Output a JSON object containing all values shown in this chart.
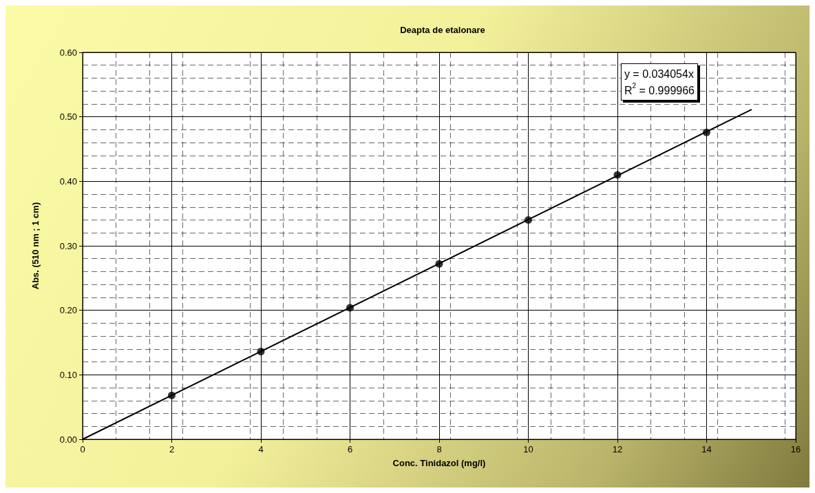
{
  "chart_data": {
    "type": "scatter",
    "title": "Deapta de etalonare",
    "xlabel": "Conc. Tinidazol (mg/l)",
    "ylabel": "Abs. (510 nm ; 1 cm)",
    "annotations": [
      "y = 0.034054x",
      "R$^{2}$ = 0.999966"
    ],
    "series": [
      {
        "color": "#000000",
        "x": [
          2,
          4,
          6,
          8,
          10,
          12,
          14
        ],
        "values": [
          0.068,
          0.136,
          0.204,
          0.272,
          0.34,
          0.41,
          0.476
        ],
        "marker": "circle"
      },
      {
        "type": "line",
        "color": "#000000",
        "x": [
          0,
          15
        ],
        "values": [
          0,
          0.511
        ],
        "marker": "none",
        "line_style": "solid"
      }
    ],
    "xlim": [
      0,
      16
    ],
    "xticks": [
      0,
      2,
      4,
      6,
      8,
      10,
      12,
      14,
      16
    ],
    "ylim": [
      0,
      0.6
    ],
    "yticks": [
      {
        "value": 0,
        "label": "0.00"
      },
      {
        "value": 0.1,
        "label": "0.10"
      },
      {
        "value": 0.2,
        "label": "0.20"
      },
      {
        "value": 0.3,
        "label": "0.30"
      },
      {
        "value": 0.4,
        "label": "0.40"
      },
      {
        "value": 0.5,
        "label": "0.50"
      },
      {
        "value": 0.6,
        "label": "0.60"
      }
    ],
    "grid": true
  }
}
